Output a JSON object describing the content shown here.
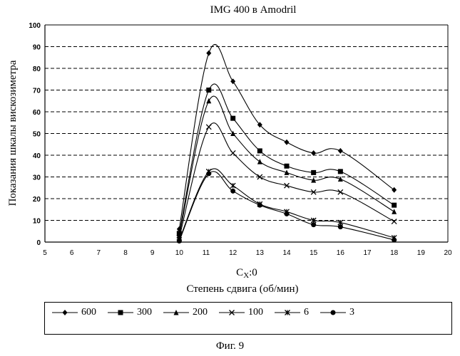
{
  "chart_data": {
    "type": "line",
    "title": "IMG 400 в Amodril",
    "ylabel": "Показания шкалы вискозиметра",
    "xlabel_line1": "C_X:0",
    "xlabel_line1_main": "C",
    "xlabel_line1_sub": "X",
    "xlabel_line1_tail": ":0",
    "xlabel_line2": "Степень сдвига (об/мин)",
    "xlim": [
      5,
      20
    ],
    "ylim": [
      0,
      100
    ],
    "xticks": [
      "5",
      "6",
      "7",
      "8",
      "9",
      "10",
      "11",
      "12",
      "13",
      "14",
      "15",
      "16",
      "17",
      "18",
      "19",
      "20"
    ],
    "yticks": [
      "0",
      "10",
      "20",
      "30",
      "40",
      "50",
      "60",
      "70",
      "80",
      "90",
      "100"
    ],
    "grid": "horizontal dashed",
    "legend_position": "bottom",
    "series": [
      {
        "name": "600",
        "marker": "diamond",
        "points": [
          [
            10,
            6
          ],
          [
            11.1,
            87
          ],
          [
            12,
            74
          ],
          [
            13,
            54
          ],
          [
            14,
            46
          ],
          [
            15,
            41
          ],
          [
            16,
            42
          ],
          [
            18,
            24
          ]
        ]
      },
      {
        "name": "300",
        "marker": "square",
        "points": [
          [
            10,
            4
          ],
          [
            11.1,
            70
          ],
          [
            12,
            57
          ],
          [
            13,
            42
          ],
          [
            14,
            35
          ],
          [
            15,
            32
          ],
          [
            16,
            32.5
          ],
          [
            18,
            17
          ]
        ]
      },
      {
        "name": "200",
        "marker": "triangle",
        "points": [
          [
            10,
            3
          ],
          [
            11.1,
            65
          ],
          [
            12,
            50
          ],
          [
            13,
            37
          ],
          [
            14,
            32
          ],
          [
            15,
            28.5
          ],
          [
            16,
            29
          ],
          [
            18,
            14
          ]
        ]
      },
      {
        "name": "100",
        "marker": "x",
        "points": [
          [
            10,
            2
          ],
          [
            11.1,
            53
          ],
          [
            12,
            41
          ],
          [
            13,
            30
          ],
          [
            14,
            26
          ],
          [
            15,
            23
          ],
          [
            16,
            23
          ],
          [
            18,
            9.5
          ]
        ]
      },
      {
        "name": "6",
        "marker": "zhe",
        "points": [
          [
            10,
            1
          ],
          [
            11.1,
            32.5
          ],
          [
            12,
            26
          ],
          [
            13,
            17.5
          ],
          [
            14,
            14
          ],
          [
            15,
            10
          ],
          [
            16,
            9
          ],
          [
            18,
            2
          ]
        ]
      },
      {
        "name": "3",
        "marker": "circle",
        "points": [
          [
            10,
            0.5
          ],
          [
            11.1,
            31.5
          ],
          [
            12,
            23.5
          ],
          [
            13,
            17
          ],
          [
            14,
            13
          ],
          [
            15,
            8
          ],
          [
            16,
            7
          ],
          [
            18,
            1
          ]
        ]
      }
    ]
  },
  "figure_caption": "Фиг. 9"
}
